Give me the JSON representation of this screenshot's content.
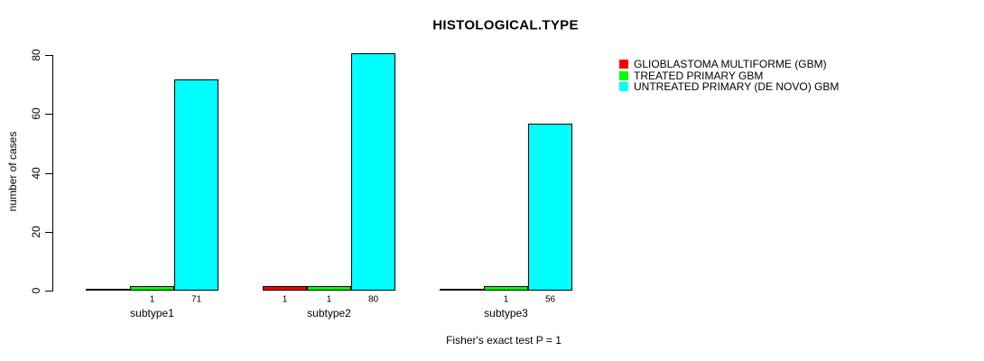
{
  "chart_data": {
    "type": "bar",
    "title": "HISTOLOGICAL.TYPE",
    "ylabel": "number of cases",
    "xlabel": "",
    "footnote": "Fisher's exact test P = 1",
    "categories": [
      "subtype1",
      "subtype2",
      "subtype3"
    ],
    "series": [
      {
        "name": "GLIOBLASTOMA MULTIFORME (GBM)",
        "color": "#ff0000",
        "values": [
          0,
          1,
          0
        ]
      },
      {
        "name": "TREATED PRIMARY GBM",
        "color": "#00ff00",
        "values": [
          1,
          1,
          1
        ]
      },
      {
        "name": "UNTREATED PRIMARY (DE NOVO) GBM",
        "color": "#00ffff",
        "values": [
          71,
          80,
          56
        ]
      }
    ],
    "yticks": [
      0,
      20,
      40,
      60,
      80
    ],
    "ylim": [
      0,
      80
    ],
    "grid": false,
    "bar_value_labels": true,
    "legend_position": "top-right",
    "background_color": "#ffffff",
    "axis_color": "#000000"
  }
}
